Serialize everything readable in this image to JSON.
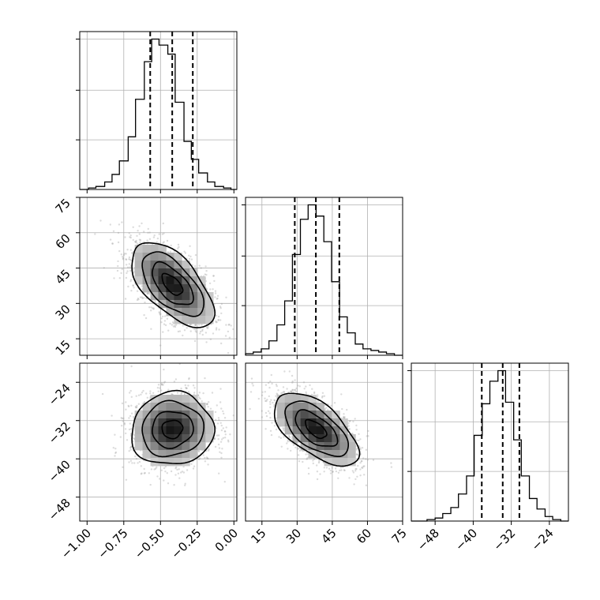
{
  "chart_data": {
    "type": "corner",
    "title": "",
    "grid": true,
    "parameters": [
      {
        "key": "p1",
        "range": [
          -1.05,
          0.02
        ],
        "ticks": [
          -1.0,
          -0.75,
          -0.5,
          -0.25,
          0.0
        ],
        "tick_labels": [
          "−1.00",
          "−0.75",
          "−0.50",
          "−0.25",
          "0.00"
        ],
        "quantiles": [
          -0.57,
          -0.42,
          -0.28
        ],
        "hist_edges": [
          -1.05,
          -0.99,
          -0.94,
          -0.88,
          -0.83,
          -0.78,
          -0.72,
          -0.67,
          -0.61,
          -0.56,
          -0.51,
          -0.45,
          -0.4,
          -0.34,
          -0.29,
          -0.24,
          -0.18,
          -0.13,
          -0.07,
          -0.02,
          0.02
        ],
        "hist_counts": [
          0,
          1,
          2,
          5,
          10,
          19,
          35,
          60,
          85,
          100,
          96,
          90,
          58,
          32,
          20,
          11,
          5,
          2,
          1,
          0
        ]
      },
      {
        "key": "p2",
        "range": [
          8,
          75
        ],
        "ticks": [
          15,
          30,
          45,
          60,
          75
        ],
        "tick_labels": [
          "15",
          "30",
          "45",
          "60",
          "75"
        ],
        "quantiles": [
          29,
          38,
          48
        ],
        "hist_edges": [
          8,
          11.3,
          14.7,
          18,
          21.4,
          24.7,
          28,
          31.4,
          34.7,
          38.1,
          41.4,
          44.7,
          48.1,
          51.4,
          54.8,
          58.1,
          61.5,
          64.8,
          68.1,
          71.5,
          75
        ],
        "hist_counts": [
          1,
          2,
          4,
          9,
          19,
          34,
          63,
          85,
          94,
          87,
          71,
          46,
          24,
          14,
          7,
          4,
          3,
          2,
          1,
          0
        ]
      },
      {
        "key": "p3",
        "range": [
          -53,
          -20
        ],
        "ticks": [
          -48,
          -40,
          -32,
          -24
        ],
        "tick_labels": [
          "−48",
          "−40",
          "−32",
          "−24"
        ],
        "quantiles": [
          -38.2,
          -33.8,
          -30.3
        ],
        "hist_edges": [
          -53,
          -51.3,
          -49.7,
          -48,
          -46.4,
          -44.7,
          -43.1,
          -41.4,
          -39.8,
          -38.1,
          -36.5,
          -34.8,
          -33.2,
          -31.5,
          -29.9,
          -28.2,
          -26.6,
          -24.9,
          -23.3,
          -21.6,
          -20
        ],
        "hist_counts": [
          0,
          0,
          1,
          2,
          5,
          9,
          18,
          30,
          57,
          78,
          93,
          100,
          79,
          54,
          30,
          15,
          8,
          3,
          1,
          0
        ]
      }
    ],
    "pairs": [
      {
        "x": "p1",
        "y": "p2",
        "mean": [
          -0.42,
          38
        ],
        "std": [
          0.14,
          9
        ],
        "corr": -0.6
      },
      {
        "x": "p1",
        "y": "p3",
        "mean": [
          -0.42,
          -33.8
        ],
        "std": [
          0.14,
          3.8
        ],
        "corr": 0.05
      },
      {
        "x": "p2",
        "y": "p3",
        "mean": [
          38,
          -33.8
        ],
        "std": [
          9,
          3.8
        ],
        "corr": -0.6
      }
    ]
  }
}
